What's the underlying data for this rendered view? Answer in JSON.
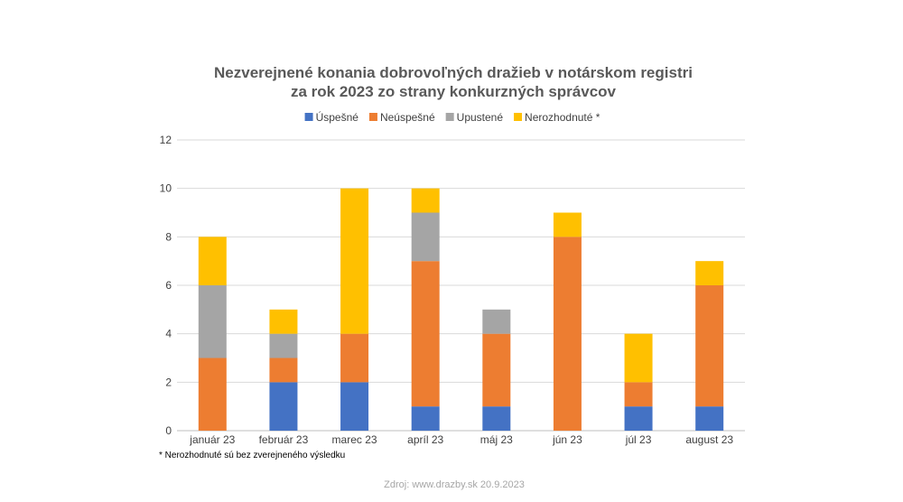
{
  "chart_data": {
    "type": "bar",
    "stacked": true,
    "title_lines": [
      "Nezverejnené konania dobrovoľných dražieb v notárskom registri",
      "za rok 2023 zo strany konkurzných správcov"
    ],
    "categories": [
      "január 23",
      "február 23",
      "marec 23",
      "apríl 23",
      "máj 23",
      "jún 23",
      "júl 23",
      "august 23"
    ],
    "series": [
      {
        "name": "Úspešné",
        "color": "#4472C4",
        "values": [
          0,
          2,
          2,
          1,
          1,
          0,
          1,
          1
        ]
      },
      {
        "name": "Neúspešné",
        "color": "#ED7D31",
        "values": [
          3,
          1,
          2,
          6,
          3,
          8,
          1,
          5
        ]
      },
      {
        "name": "Upustené",
        "color": "#A5A5A5",
        "values": [
          3,
          1,
          0,
          2,
          1,
          0,
          0,
          0
        ]
      },
      {
        "name": "Nerozhodnuté  *",
        "color": "#FFC000",
        "values": [
          2,
          1,
          6,
          1,
          0,
          1,
          2,
          1
        ]
      }
    ],
    "ylim": [
      0,
      12
    ],
    "yticks": [
      "0",
      "2",
      "4",
      "6",
      "8",
      "10",
      "12"
    ],
    "grid": true,
    "legend_position": "top"
  },
  "footnote": "* Nerozhodnuté sú bez zverejneného výsledku",
  "source": "Zdroj: www.drazby.sk 20.9.2023"
}
